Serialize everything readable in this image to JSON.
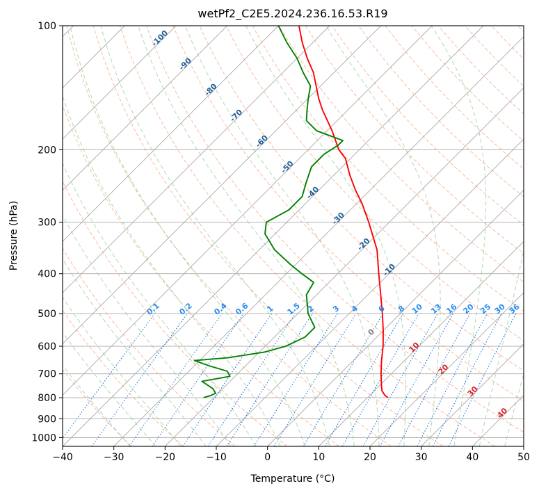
{
  "chart_data": {
    "type": "line",
    "title": "wetPf2_C2E5.2024.236.16.53.R19",
    "xlabel": "Temperature (°C)",
    "ylabel": "Pressure (hPa)",
    "xlim": [
      -40,
      50
    ],
    "ylim": [
      1050,
      100
    ],
    "y_scale": "log",
    "skew": true,
    "grid": true,
    "x_ticks": [
      -40,
      -30,
      -20,
      -10,
      0,
      10,
      20,
      30,
      40,
      50
    ],
    "y_ticks": [
      100,
      200,
      300,
      400,
      500,
      600,
      700,
      800,
      900,
      1000
    ],
    "series": [
      {
        "role": "temperature",
        "color": "#ff0000",
        "points": [
          [
            800,
            14
          ],
          [
            790,
            13
          ],
          [
            770,
            11.5
          ],
          [
            750,
            10.5
          ],
          [
            700,
            8
          ],
          [
            650,
            5.5
          ],
          [
            600,
            3
          ],
          [
            550,
            0
          ],
          [
            500,
            -3.5
          ],
          [
            450,
            -7.5
          ],
          [
            400,
            -12
          ],
          [
            350,
            -17
          ],
          [
            300,
            -24
          ],
          [
            270,
            -29
          ],
          [
            250,
            -33
          ],
          [
            230,
            -37
          ],
          [
            210,
            -41
          ],
          [
            200,
            -44
          ],
          [
            180,
            -49
          ],
          [
            160,
            -55
          ],
          [
            150,
            -58
          ],
          [
            130,
            -64
          ],
          [
            120,
            -68
          ],
          [
            110,
            -72
          ],
          [
            100,
            -76
          ]
        ]
      },
      {
        "role": "dewpoint",
        "color": "#008000",
        "points": [
          [
            800,
            -22
          ],
          [
            790,
            -21
          ],
          [
            780,
            -20.5
          ],
          [
            760,
            -22
          ],
          [
            730,
            -25.5
          ],
          [
            710,
            -21
          ],
          [
            690,
            -22.5
          ],
          [
            670,
            -27
          ],
          [
            650,
            -31
          ],
          [
            640,
            -25
          ],
          [
            620,
            -19
          ],
          [
            600,
            -16
          ],
          [
            570,
            -14
          ],
          [
            540,
            -14
          ],
          [
            500,
            -18
          ],
          [
            450,
            -22
          ],
          [
            420,
            -23
          ],
          [
            400,
            -27
          ],
          [
            380,
            -31
          ],
          [
            350,
            -37
          ],
          [
            320,
            -42
          ],
          [
            300,
            -44
          ],
          [
            280,
            -42
          ],
          [
            260,
            -42
          ],
          [
            240,
            -44
          ],
          [
            220,
            -46
          ],
          [
            205,
            -46
          ],
          [
            195,
            -45
          ],
          [
            190,
            -45
          ],
          [
            180,
            -52
          ],
          [
            170,
            -56
          ],
          [
            160,
            -58
          ],
          [
            150,
            -60
          ],
          [
            140,
            -62
          ],
          [
            130,
            -66
          ],
          [
            120,
            -70
          ],
          [
            110,
            -75
          ],
          [
            100,
            -80
          ]
        ]
      }
    ],
    "annotations": {
      "dry_adiabat_labels": [
        "-100",
        "-90",
        "-80",
        "-70",
        "-60",
        "-50",
        "-40",
        "-30",
        "-20",
        "-10"
      ],
      "mixing_ratio_labels": [
        "0.1",
        "0.2",
        "0.4",
        "0.6",
        "1",
        "1.5",
        "2",
        "3",
        "4",
        "6",
        "8",
        "10",
        "13",
        "16",
        "20",
        "25",
        "30",
        "36"
      ],
      "moist_adiabat_labels": [
        "0",
        "10",
        "20",
        "30",
        "40"
      ]
    },
    "colors": {
      "temperature_line": "#ff0000",
      "dewpoint_line": "#008000",
      "isotherms": "#a9a9a9",
      "dry_adiabats": "#f4a582",
      "moist_adiabats": "#8fc88f",
      "mixing_ratio": "#1f77d4",
      "dry_adiabat_label": "#1f5f99",
      "mixing_label": "#2a8cf0",
      "moist_label": "#d62728",
      "moist_zero_label": "#808080"
    }
  }
}
